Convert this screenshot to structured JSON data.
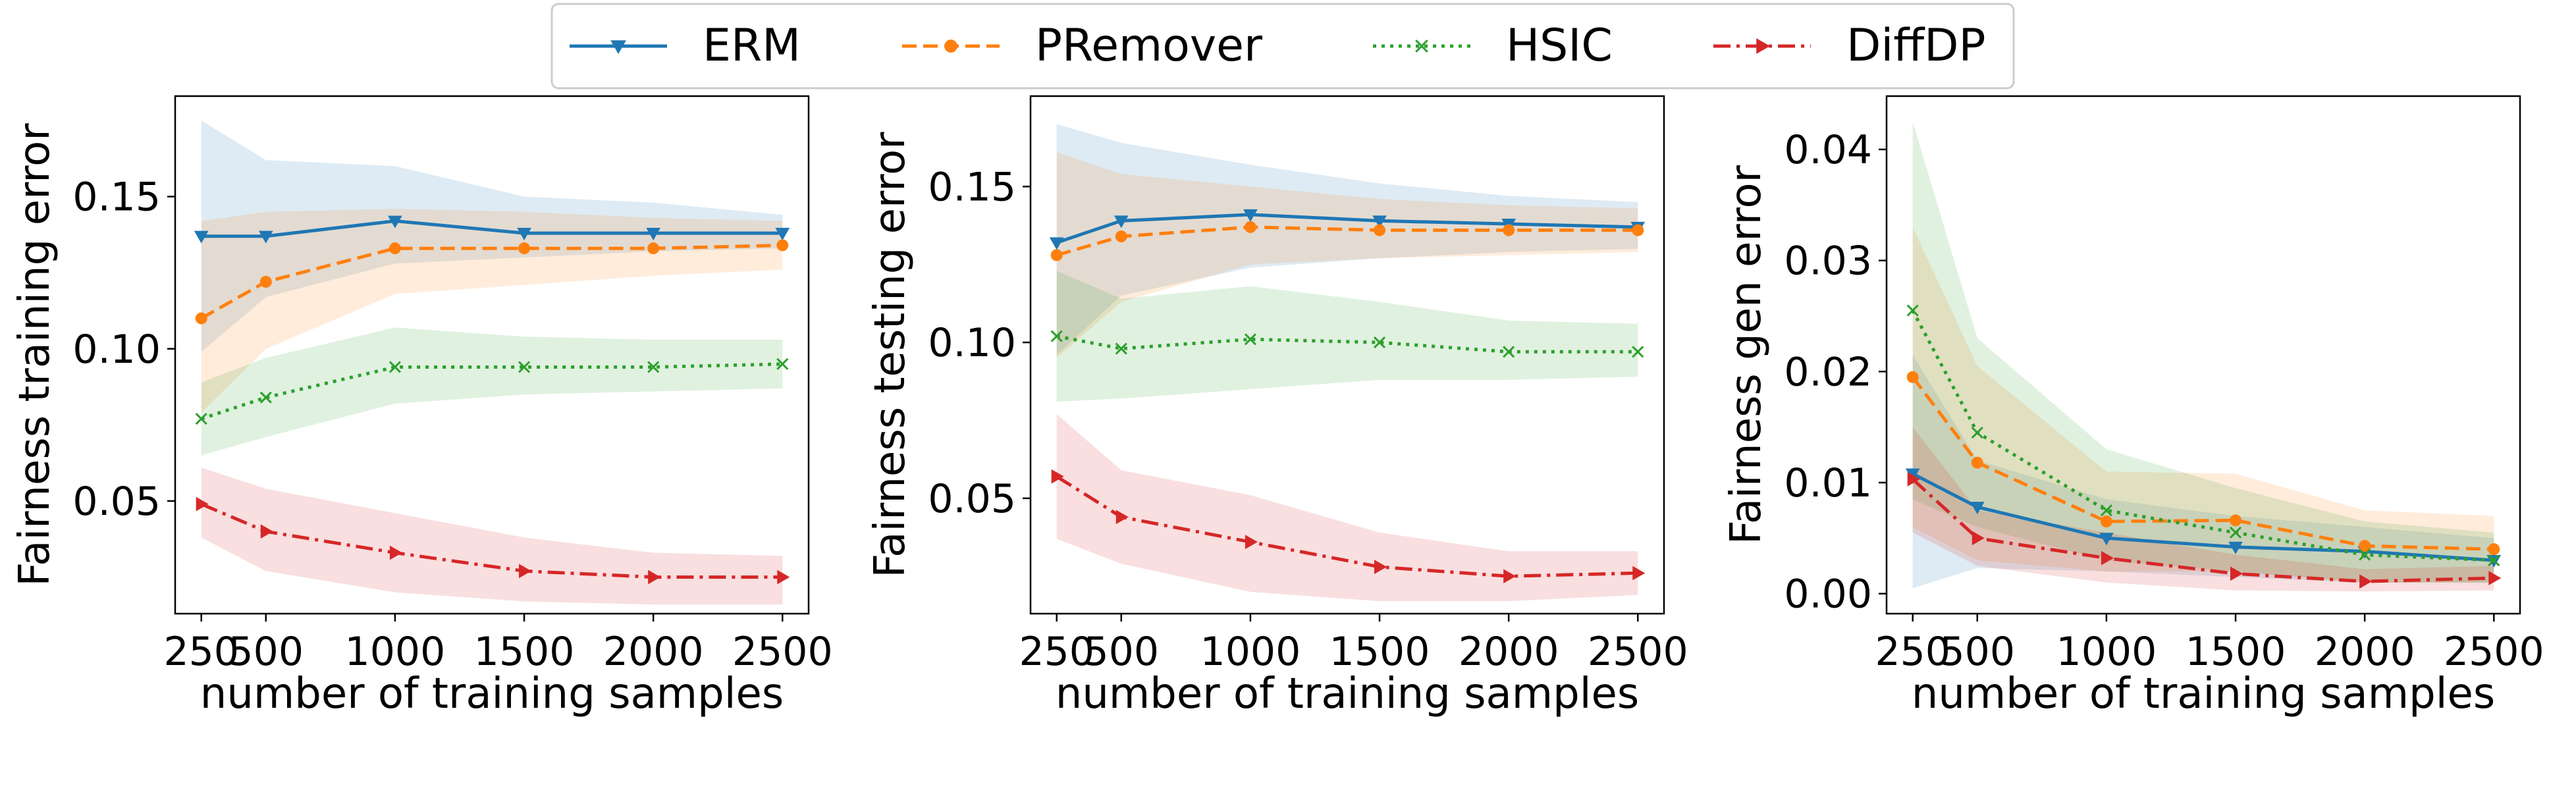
{
  "legend": {
    "placement": "top-center",
    "entries": [
      {
        "label": "ERM",
        "color": "#1f77b4",
        "dash": "solid",
        "marker": "tri-down"
      },
      {
        "label": "PRemover",
        "color": "#ff7f0e",
        "dash": "dashed",
        "marker": "circle"
      },
      {
        "label": "HSIC",
        "color": "#2ca02c",
        "dash": "dotted",
        "marker": "x"
      },
      {
        "label": "DiffDP",
        "color": "#d62728",
        "dash": "dashdot",
        "marker": "tri-right"
      }
    ]
  },
  "chart_data": [
    {
      "type": "line",
      "title": "",
      "xlabel": "number of training samples",
      "ylabel": "Fairness training error",
      "x": [
        250,
        500,
        1000,
        1500,
        2000,
        2500
      ],
      "xticks": [
        "250",
        "500",
        "1000",
        "1500",
        "2000",
        "2500"
      ],
      "ylim": [
        0.013,
        0.183
      ],
      "yticks": [
        0.05,
        0.1,
        0.15
      ],
      "ytick_labels": [
        "0.05",
        "0.10",
        "0.15"
      ],
      "grid": false,
      "series": [
        {
          "name": "ERM",
          "values": [
            0.137,
            0.137,
            0.142,
            0.138,
            0.138,
            0.138
          ],
          "band_low": [
            0.099,
            0.117,
            0.128,
            0.13,
            0.132,
            0.133
          ],
          "band_high": [
            0.175,
            0.162,
            0.16,
            0.15,
            0.148,
            0.144
          ]
        },
        {
          "name": "PRemover",
          "values": [
            0.11,
            0.122,
            0.133,
            0.133,
            0.133,
            0.134
          ],
          "band_low": [
            0.079,
            0.1,
            0.118,
            0.121,
            0.124,
            0.126
          ],
          "band_high": [
            0.142,
            0.145,
            0.146,
            0.145,
            0.143,
            0.142
          ]
        },
        {
          "name": "HSIC",
          "values": [
            0.077,
            0.084,
            0.094,
            0.094,
            0.094,
            0.095
          ],
          "band_low": [
            0.065,
            0.071,
            0.082,
            0.085,
            0.086,
            0.087
          ],
          "band_high": [
            0.089,
            0.097,
            0.107,
            0.104,
            0.103,
            0.103
          ]
        },
        {
          "name": "DiffDP",
          "values": [
            0.049,
            0.04,
            0.033,
            0.027,
            0.025,
            0.025
          ],
          "band_low": [
            0.038,
            0.027,
            0.02,
            0.017,
            0.016,
            0.016
          ],
          "band_high": [
            0.061,
            0.054,
            0.046,
            0.038,
            0.033,
            0.032
          ]
        }
      ]
    },
    {
      "type": "line",
      "title": "",
      "xlabel": "number of training samples",
      "ylabel": "Fairness testing error",
      "x": [
        250,
        500,
        1000,
        1500,
        2000,
        2500
      ],
      "xticks": [
        "250",
        "500",
        "1000",
        "1500",
        "2000",
        "2500"
      ],
      "ylim": [
        0.013,
        0.179
      ],
      "yticks": [
        0.05,
        0.1,
        0.15
      ],
      "ytick_labels": [
        "0.05",
        "0.10",
        "0.15"
      ],
      "grid": false,
      "series": [
        {
          "name": "ERM",
          "values": [
            0.132,
            0.139,
            0.141,
            0.139,
            0.138,
            0.137
          ],
          "band_low": [
            0.096,
            0.115,
            0.124,
            0.127,
            0.129,
            0.13
          ],
          "band_high": [
            0.17,
            0.164,
            0.157,
            0.151,
            0.147,
            0.145
          ]
        },
        {
          "name": "PRemover",
          "values": [
            0.128,
            0.134,
            0.137,
            0.136,
            0.136,
            0.136
          ],
          "band_low": [
            0.095,
            0.113,
            0.125,
            0.127,
            0.128,
            0.129
          ],
          "band_high": [
            0.161,
            0.154,
            0.15,
            0.146,
            0.144,
            0.143
          ]
        },
        {
          "name": "HSIC",
          "values": [
            0.102,
            0.098,
            0.101,
            0.1,
            0.097,
            0.097
          ],
          "band_low": [
            0.081,
            0.082,
            0.085,
            0.088,
            0.088,
            0.089
          ],
          "band_high": [
            0.123,
            0.114,
            0.118,
            0.113,
            0.107,
            0.106
          ]
        },
        {
          "name": "DiffDP",
          "values": [
            0.057,
            0.044,
            0.036,
            0.028,
            0.025,
            0.026
          ],
          "band_low": [
            0.037,
            0.029,
            0.02,
            0.017,
            0.017,
            0.019
          ],
          "band_high": [
            0.077,
            0.059,
            0.051,
            0.039,
            0.033,
            0.033
          ]
        }
      ]
    },
    {
      "type": "line",
      "title": "",
      "xlabel": "number of training samples",
      "ylabel": "Fairness gen error",
      "x": [
        250,
        500,
        1000,
        1500,
        2000,
        2500
      ],
      "xticks": [
        "250",
        "500",
        "1000",
        "1500",
        "2000",
        "2500"
      ],
      "ylim": [
        -0.0018,
        0.0448
      ],
      "yticks": [
        0.0,
        0.01,
        0.02,
        0.03,
        0.04
      ],
      "ytick_labels": [
        "0.00",
        "0.01",
        "0.02",
        "0.03",
        "0.04"
      ],
      "grid": false,
      "series": [
        {
          "name": "ERM",
          "values": [
            0.0108,
            0.0078,
            0.005,
            0.0042,
            0.0038,
            0.003
          ],
          "band_low": [
            0.0005,
            0.0023,
            0.002,
            0.0015,
            0.001,
            0.001
          ],
          "band_high": [
            0.0215,
            0.012,
            0.0085,
            0.007,
            0.006,
            0.005
          ]
        },
        {
          "name": "PRemover",
          "values": [
            0.0195,
            0.0118,
            0.0065,
            0.0066,
            0.0043,
            0.004
          ],
          "band_low": [
            0.006,
            0.003,
            0.002,
            0.002,
            0.001,
            0.001
          ],
          "band_high": [
            0.033,
            0.0205,
            0.011,
            0.0108,
            0.0075,
            0.007
          ]
        },
        {
          "name": "HSIC",
          "values": [
            0.0255,
            0.0145,
            0.0075,
            0.0055,
            0.0035,
            0.003
          ],
          "band_low": [
            0.0085,
            0.006,
            0.003,
            0.002,
            0.001,
            0.001
          ],
          "band_high": [
            0.0425,
            0.023,
            0.013,
            0.0095,
            0.0065,
            0.0055
          ]
        },
        {
          "name": "DiffDP",
          "values": [
            0.0103,
            0.005,
            0.0032,
            0.0018,
            0.0011,
            0.0014
          ],
          "band_low": [
            0.0055,
            0.0025,
            0.001,
            0.0003,
            0.0002,
            0.0003
          ],
          "band_high": [
            0.015,
            0.0075,
            0.0055,
            0.0035,
            0.0022,
            0.0025
          ]
        }
      ]
    }
  ]
}
